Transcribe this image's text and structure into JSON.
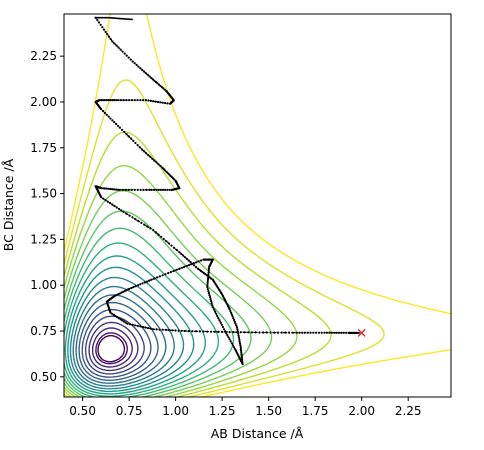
{
  "chart_data": {
    "type": "contour",
    "title": "",
    "xlabel": "AB Distance /Å",
    "ylabel": "BC Distance /Å",
    "xlim": [
      0.4,
      2.48
    ],
    "ylim": [
      0.39,
      2.48
    ],
    "xticks": [
      "0.50",
      "0.75",
      "1.00",
      "1.25",
      "1.50",
      "1.75",
      "2.00",
      "2.25"
    ],
    "yticks": [
      "0.50",
      "0.75",
      "1.00",
      "1.25",
      "1.50",
      "1.75",
      "2.00",
      "2.25"
    ],
    "xtick_values": [
      0.5,
      0.75,
      1.0,
      1.25,
      1.5,
      1.75,
      2.0,
      2.25
    ],
    "ytick_values": [
      0.5,
      0.75,
      1.0,
      1.25,
      1.5,
      1.75,
      2.0,
      2.25
    ],
    "colormap": "viridis",
    "contour_levels": 20,
    "grid": false,
    "legend": "none",
    "trajectory_color": "#000000",
    "trajectory": {
      "name": "",
      "points": [
        [
          0.57,
          2.46
        ],
        [
          0.66,
          2.33
        ],
        [
          0.77,
          2.22
        ],
        [
          0.87,
          2.13
        ],
        [
          0.95,
          2.06
        ],
        [
          0.99,
          2.01
        ],
        [
          0.97,
          1.99
        ],
        [
          0.84,
          2.01
        ],
        [
          0.69,
          2.01
        ],
        [
          0.59,
          2.01
        ],
        [
          0.57,
          2.0
        ],
        [
          0.6,
          1.96
        ],
        [
          0.7,
          1.86
        ],
        [
          0.82,
          1.74
        ],
        [
          0.93,
          1.64
        ],
        [
          1.0,
          1.57
        ],
        [
          1.02,
          1.53
        ],
        [
          0.98,
          1.52
        ],
        [
          0.86,
          1.52
        ],
        [
          0.7,
          1.52
        ],
        [
          0.6,
          1.53
        ],
        [
          0.57,
          1.54
        ],
        [
          0.6,
          1.48
        ],
        [
          0.72,
          1.4
        ],
        [
          0.88,
          1.3
        ],
        [
          1.02,
          1.18
        ],
        [
          1.12,
          1.09
        ],
        [
          1.2,
          1.03
        ],
        [
          1.25,
          0.95
        ],
        [
          1.29,
          0.87
        ],
        [
          1.33,
          0.77
        ],
        [
          1.35,
          0.66
        ],
        [
          1.36,
          0.57
        ],
        [
          1.32,
          0.65
        ],
        [
          1.26,
          0.76
        ],
        [
          1.2,
          0.88
        ],
        [
          1.17,
          0.99
        ],
        [
          1.18,
          1.1
        ],
        [
          1.2,
          1.14
        ],
        [
          1.15,
          1.14
        ],
        [
          1.02,
          1.09
        ],
        [
          0.87,
          1.03
        ],
        [
          0.75,
          0.98
        ],
        [
          0.67,
          0.94
        ],
        [
          0.63,
          0.91
        ],
        [
          0.65,
          0.85
        ],
        [
          0.74,
          0.79
        ],
        [
          0.88,
          0.76
        ],
        [
          1.05,
          0.75
        ],
        [
          1.25,
          0.745
        ],
        [
          1.45,
          0.742
        ],
        [
          1.65,
          0.741
        ],
        [
          1.8,
          0.741
        ],
        [
          1.93,
          0.74
        ],
        [
          1.99,
          0.74
        ]
      ],
      "tail_stub": [
        [
          0.57,
          2.46
        ],
        [
          0.64,
          2.46
        ],
        [
          0.77,
          2.45
        ]
      ]
    },
    "end_marker": {
      "x": 2.0,
      "y": 0.74,
      "symbol": "x",
      "color": "#d62728"
    }
  }
}
